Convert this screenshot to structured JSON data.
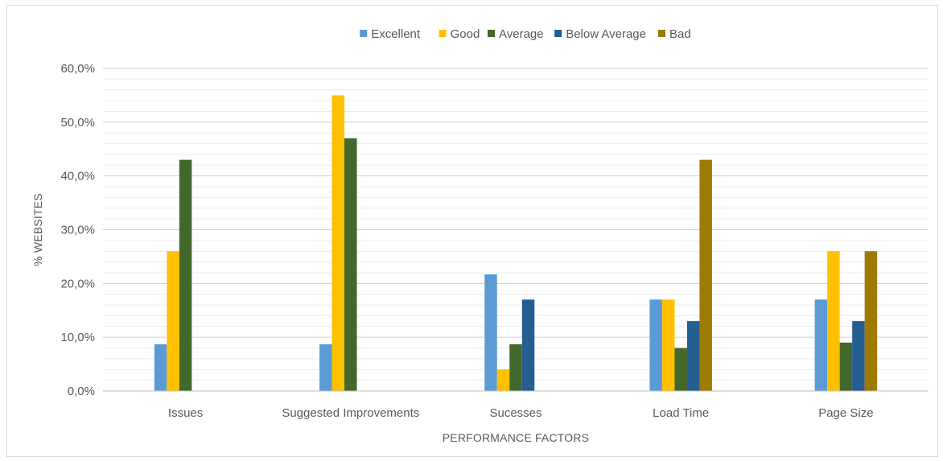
{
  "chart_data": {
    "type": "bar",
    "title": "",
    "xlabel": "PERFORMANCE FACTORS",
    "ylabel": "% WEBSITES",
    "ylim": [
      0,
      60
    ],
    "y_ticks": [
      0,
      10,
      20,
      30,
      40,
      50,
      60
    ],
    "y_tick_labels": [
      "0,0%",
      "10,0%",
      "20,0%",
      "30,0%",
      "40,0%",
      "50,0%",
      "60,0%"
    ],
    "grid": true,
    "legend_position": "top",
    "categories": [
      "Issues",
      "Suggested Improvements",
      "Sucesses",
      "Load Time",
      "Page Size"
    ],
    "series": [
      {
        "name": "Excellent",
        "color": "#5b9bd5",
        "values": [
          8.7,
          8.7,
          21.7,
          17.0,
          17.0
        ]
      },
      {
        "name": "Good",
        "color": "#ffc000",
        "values": [
          26.0,
          55.0,
          4.0,
          17.0,
          26.0
        ]
      },
      {
        "name": "Average",
        "color": "#43682b",
        "values": [
          43.0,
          47.0,
          8.7,
          8.0,
          9.0
        ]
      },
      {
        "name": "Below Average",
        "color": "#255e91",
        "values": [
          0,
          0,
          17.0,
          13.0,
          13.0
        ]
      },
      {
        "name": "Bad",
        "color": "#9e7a00",
        "values": [
          0,
          0,
          0,
          43.0,
          26.0
        ]
      }
    ]
  }
}
